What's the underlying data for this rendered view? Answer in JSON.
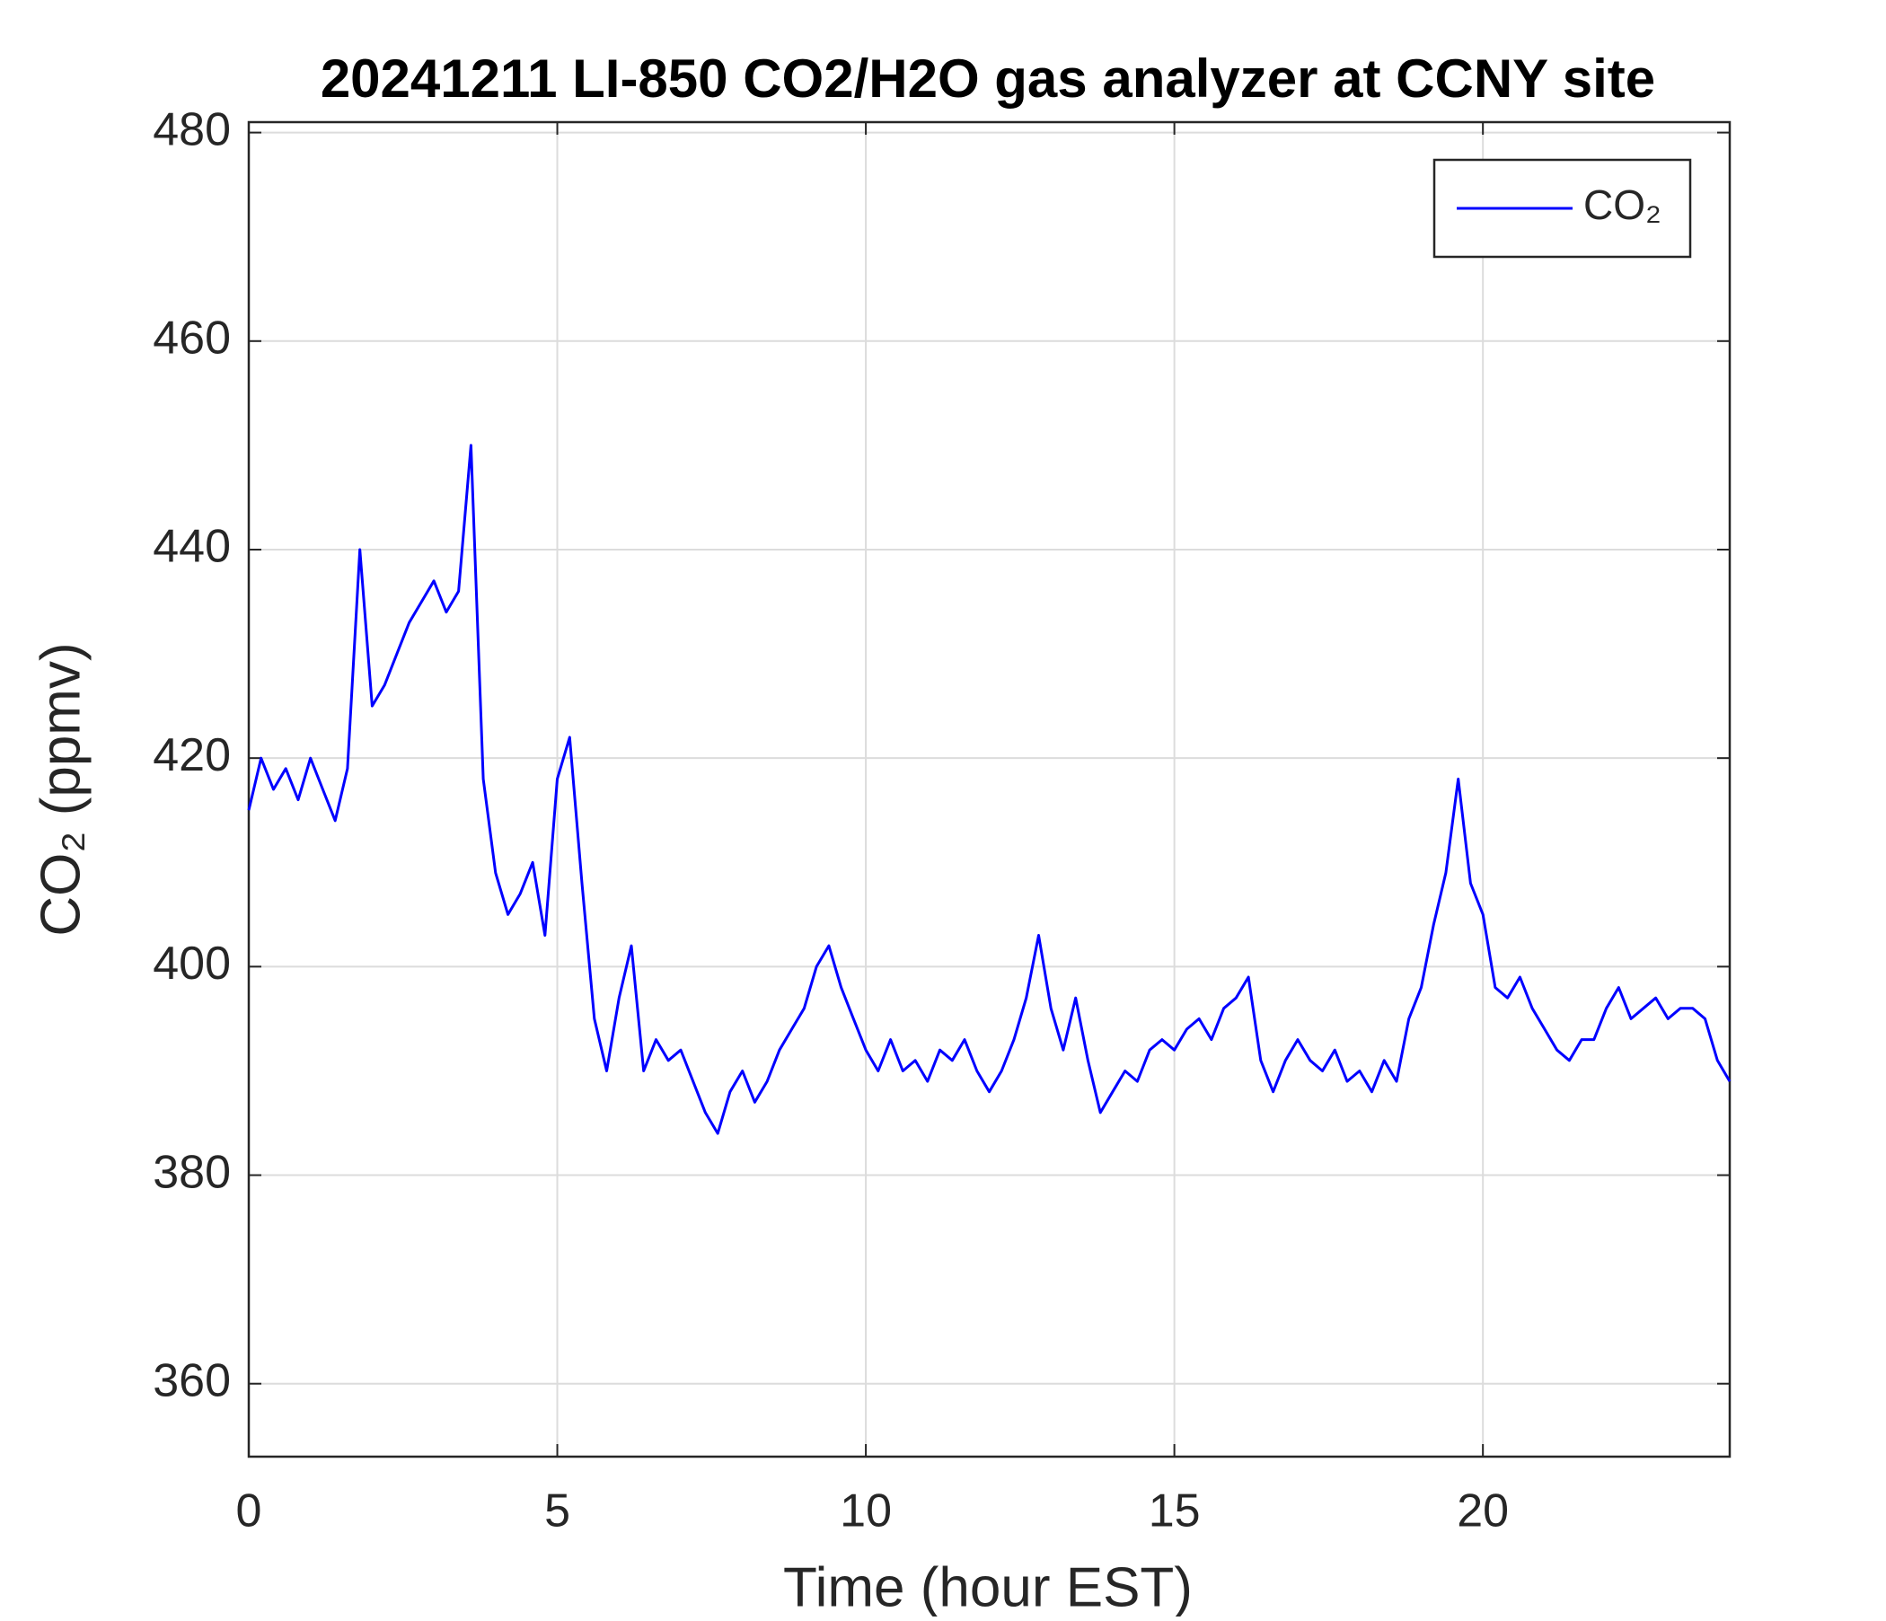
{
  "chart_data": {
    "type": "line",
    "title": "20241211 LI-850 CO2/H2O gas analyzer at CCNY site",
    "xlabel": "Time (hour EST)",
    "ylabel": "CO₂ (ppmv)",
    "xlim": [
      0,
      24
    ],
    "xticks": [
      0,
      5,
      10,
      15,
      20
    ],
    "ylim": [
      353,
      481
    ],
    "yticks": [
      360,
      380,
      400,
      420,
      440,
      460,
      480
    ],
    "grid": true,
    "legend": "upper right",
    "x": [
      0,
      0.2,
      0.4,
      0.6,
      0.8,
      1,
      1.2,
      1.4,
      1.6,
      1.8,
      2,
      2.2,
      2.4,
      2.6,
      2.8,
      3,
      3.2,
      3.4,
      3.6,
      3.8,
      4,
      4.2,
      4.4,
      4.6,
      4.8,
      5,
      5.2,
      5.4,
      5.6,
      5.8,
      6,
      6.2,
      6.4,
      6.6,
      6.8,
      7,
      7.2,
      7.4,
      7.6,
      7.8,
      8,
      8.2,
      8.4,
      8.6,
      8.8,
      9,
      9.2,
      9.4,
      9.6,
      9.8,
      10,
      10.2,
      10.4,
      10.6,
      10.8,
      11,
      11.2,
      11.4,
      11.6,
      11.8,
      12,
      12.2,
      12.4,
      12.6,
      12.8,
      13,
      13.2,
      13.4,
      13.6,
      13.8,
      14,
      14.2,
      14.4,
      14.6,
      14.8,
      15,
      15.2,
      15.4,
      15.6,
      15.8,
      16,
      16.2,
      16.4,
      16.6,
      16.8,
      17,
      17.2,
      17.4,
      17.6,
      17.8,
      18,
      18.2,
      18.4,
      18.6,
      18.8,
      19,
      19.2,
      19.4,
      19.6,
      19.8,
      20,
      20.2,
      20.4,
      20.6,
      20.8,
      21,
      21.2,
      21.4,
      21.6,
      21.8,
      22,
      22.2,
      22.4,
      22.6,
      22.8,
      23,
      23.2,
      23.4,
      23.6,
      23.8,
      24
    ],
    "series": [
      {
        "name": "CO₂",
        "color": "#0000ff",
        "values": [
          415,
          420,
          417,
          419,
          416,
          420,
          417,
          414,
          419,
          440,
          425,
          427,
          430,
          433,
          435,
          437,
          434,
          436,
          450,
          418,
          409,
          405,
          407,
          410,
          403,
          418,
          422,
          408,
          395,
          390,
          397,
          402,
          390,
          393,
          391,
          392,
          389,
          386,
          384,
          388,
          390,
          387,
          389,
          392,
          394,
          396,
          400,
          402,
          398,
          395,
          392,
          390,
          393,
          390,
          391,
          389,
          392,
          391,
          393,
          390,
          388,
          390,
          393,
          397,
          403,
          396,
          392,
          397,
          391,
          386,
          388,
          390,
          389,
          392,
          393,
          392,
          394,
          395,
          393,
          396,
          397,
          399,
          391,
          388,
          391,
          393,
          391,
          390,
          392,
          389,
          390,
          388,
          391,
          389,
          395,
          398,
          404,
          409,
          418,
          408,
          405,
          398,
          397,
          399,
          396,
          394,
          392,
          391,
          393,
          393,
          396,
          398,
          395,
          396,
          397,
          395,
          396,
          396,
          395,
          391,
          389
        ]
      }
    ]
  }
}
